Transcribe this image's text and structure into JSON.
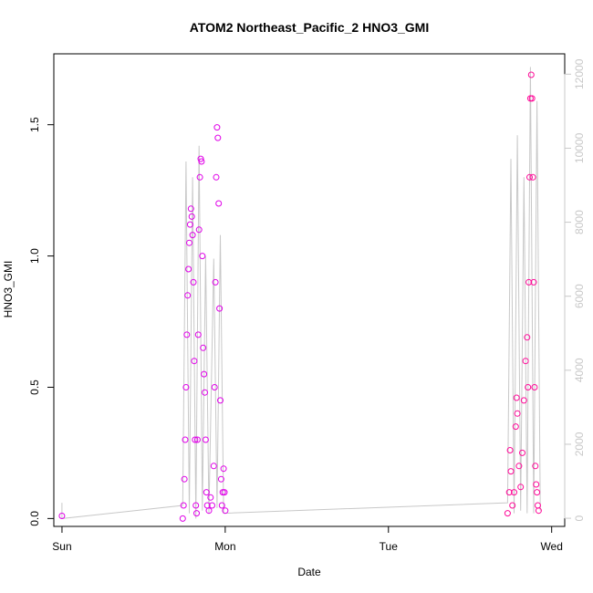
{
  "chart_data": {
    "type": "scatter",
    "title": "ATOM2 Northeast_Pacific_2 HNO3_GMI",
    "xlabel": "Date",
    "ylabel": "HNO3_GMI",
    "x_tick_labels": [
      "Sun",
      "Mon",
      "Tue",
      "Wed"
    ],
    "xlim": [
      -0.05,
      3.08
    ],
    "ylim": [
      -0.03,
      1.77
    ],
    "y_ticks": [
      "0.0",
      "0.5",
      "1.0",
      "1.5"
    ],
    "y2_ticks": [
      "0",
      "2000",
      "4000",
      "6000",
      "8000",
      "10000",
      "12000"
    ],
    "y2lim": [
      -220,
      12550
    ],
    "colors": {
      "early": "#e000e8",
      "late": "#ff0a99",
      "secondary": "#c8c8c8"
    },
    "series": [
      {
        "color_key": "early",
        "points": [
          [
            0.0,
            0.01
          ],
          [
            0.74,
            0.0
          ],
          [
            0.745,
            0.05
          ],
          [
            0.75,
            0.15
          ],
          [
            0.755,
            0.3
          ],
          [
            0.76,
            0.5
          ],
          [
            0.765,
            0.7
          ],
          [
            0.77,
            0.85
          ],
          [
            0.775,
            0.95
          ],
          [
            0.78,
            1.05
          ],
          [
            0.785,
            1.12
          ],
          [
            0.79,
            1.18
          ],
          [
            0.795,
            1.15
          ],
          [
            0.8,
            1.08
          ],
          [
            0.805,
            0.9
          ],
          [
            0.81,
            0.6
          ],
          [
            0.815,
            0.3
          ],
          [
            0.82,
            0.05
          ],
          [
            0.825,
            0.02
          ],
          [
            0.83,
            0.3
          ],
          [
            0.835,
            0.7
          ],
          [
            0.84,
            1.1
          ],
          [
            0.845,
            1.3
          ],
          [
            0.85,
            1.37
          ],
          [
            0.855,
            1.36
          ],
          [
            0.86,
            1.0
          ],
          [
            0.865,
            0.65
          ],
          [
            0.87,
            0.55
          ],
          [
            0.875,
            0.48
          ],
          [
            0.88,
            0.3
          ],
          [
            0.885,
            0.1
          ],
          [
            0.89,
            0.05
          ],
          [
            0.9,
            0.03
          ],
          [
            0.91,
            0.08
          ],
          [
            0.92,
            0.05
          ],
          [
            0.93,
            0.2
          ],
          [
            0.935,
            0.5
          ],
          [
            0.94,
            0.9
          ],
          [
            0.945,
            1.3
          ],
          [
            0.95,
            1.49
          ],
          [
            0.955,
            1.45
          ],
          [
            0.96,
            1.2
          ],
          [
            0.965,
            0.8
          ],
          [
            0.97,
            0.45
          ],
          [
            0.975,
            0.15
          ],
          [
            0.98,
            0.05
          ],
          [
            0.985,
            0.1
          ],
          [
            0.99,
            0.19
          ],
          [
            0.995,
            0.1
          ],
          [
            1.0,
            0.03
          ]
        ]
      },
      {
        "color_key": "late",
        "points": [
          [
            2.73,
            0.02
          ],
          [
            2.74,
            0.1
          ],
          [
            2.745,
            0.26
          ],
          [
            2.75,
            0.18
          ],
          [
            2.76,
            0.05
          ],
          [
            2.77,
            0.1
          ],
          [
            2.78,
            0.35
          ],
          [
            2.785,
            0.46
          ],
          [
            2.79,
            0.4
          ],
          [
            2.8,
            0.2
          ],
          [
            2.81,
            0.12
          ],
          [
            2.82,
            0.25
          ],
          [
            2.83,
            0.45
          ],
          [
            2.84,
            0.6
          ],
          [
            2.85,
            0.69
          ],
          [
            2.855,
            0.5
          ],
          [
            2.86,
            0.9
          ],
          [
            2.865,
            1.3
          ],
          [
            2.87,
            1.6
          ],
          [
            2.875,
            1.69
          ],
          [
            2.88,
            1.6
          ],
          [
            2.885,
            1.3
          ],
          [
            2.89,
            0.9
          ],
          [
            2.895,
            0.5
          ],
          [
            2.9,
            0.2
          ],
          [
            2.905,
            0.13
          ],
          [
            2.91,
            0.1
          ],
          [
            2.915,
            0.05
          ],
          [
            2.92,
            0.03
          ]
        ]
      }
    ],
    "secondary_line": {
      "color_key": "secondary",
      "points": [
        [
          0.0,
          0.06
        ],
        [
          0.0,
          0.0
        ],
        [
          0.74,
          0.05
        ],
        [
          0.76,
          1.36
        ],
        [
          0.78,
          0.02
        ],
        [
          0.8,
          1.3
        ],
        [
          0.82,
          0.0
        ],
        [
          0.84,
          1.42
        ],
        [
          0.86,
          0.03
        ],
        [
          0.88,
          1.0
        ],
        [
          0.9,
          0.02
        ],
        [
          0.93,
          0.99
        ],
        [
          0.95,
          0.04
        ],
        [
          0.97,
          1.08
        ],
        [
          0.99,
          0.02
        ],
        [
          2.73,
          0.06
        ],
        [
          2.75,
          1.37
        ],
        [
          2.77,
          0.02
        ],
        [
          2.79,
          1.46
        ],
        [
          2.81,
          0.03
        ],
        [
          2.83,
          1.3
        ],
        [
          2.85,
          0.02
        ],
        [
          2.87,
          1.72
        ],
        [
          2.89,
          0.02
        ],
        [
          2.91,
          1.59
        ],
        [
          2.93,
          0.03
        ]
      ]
    }
  }
}
